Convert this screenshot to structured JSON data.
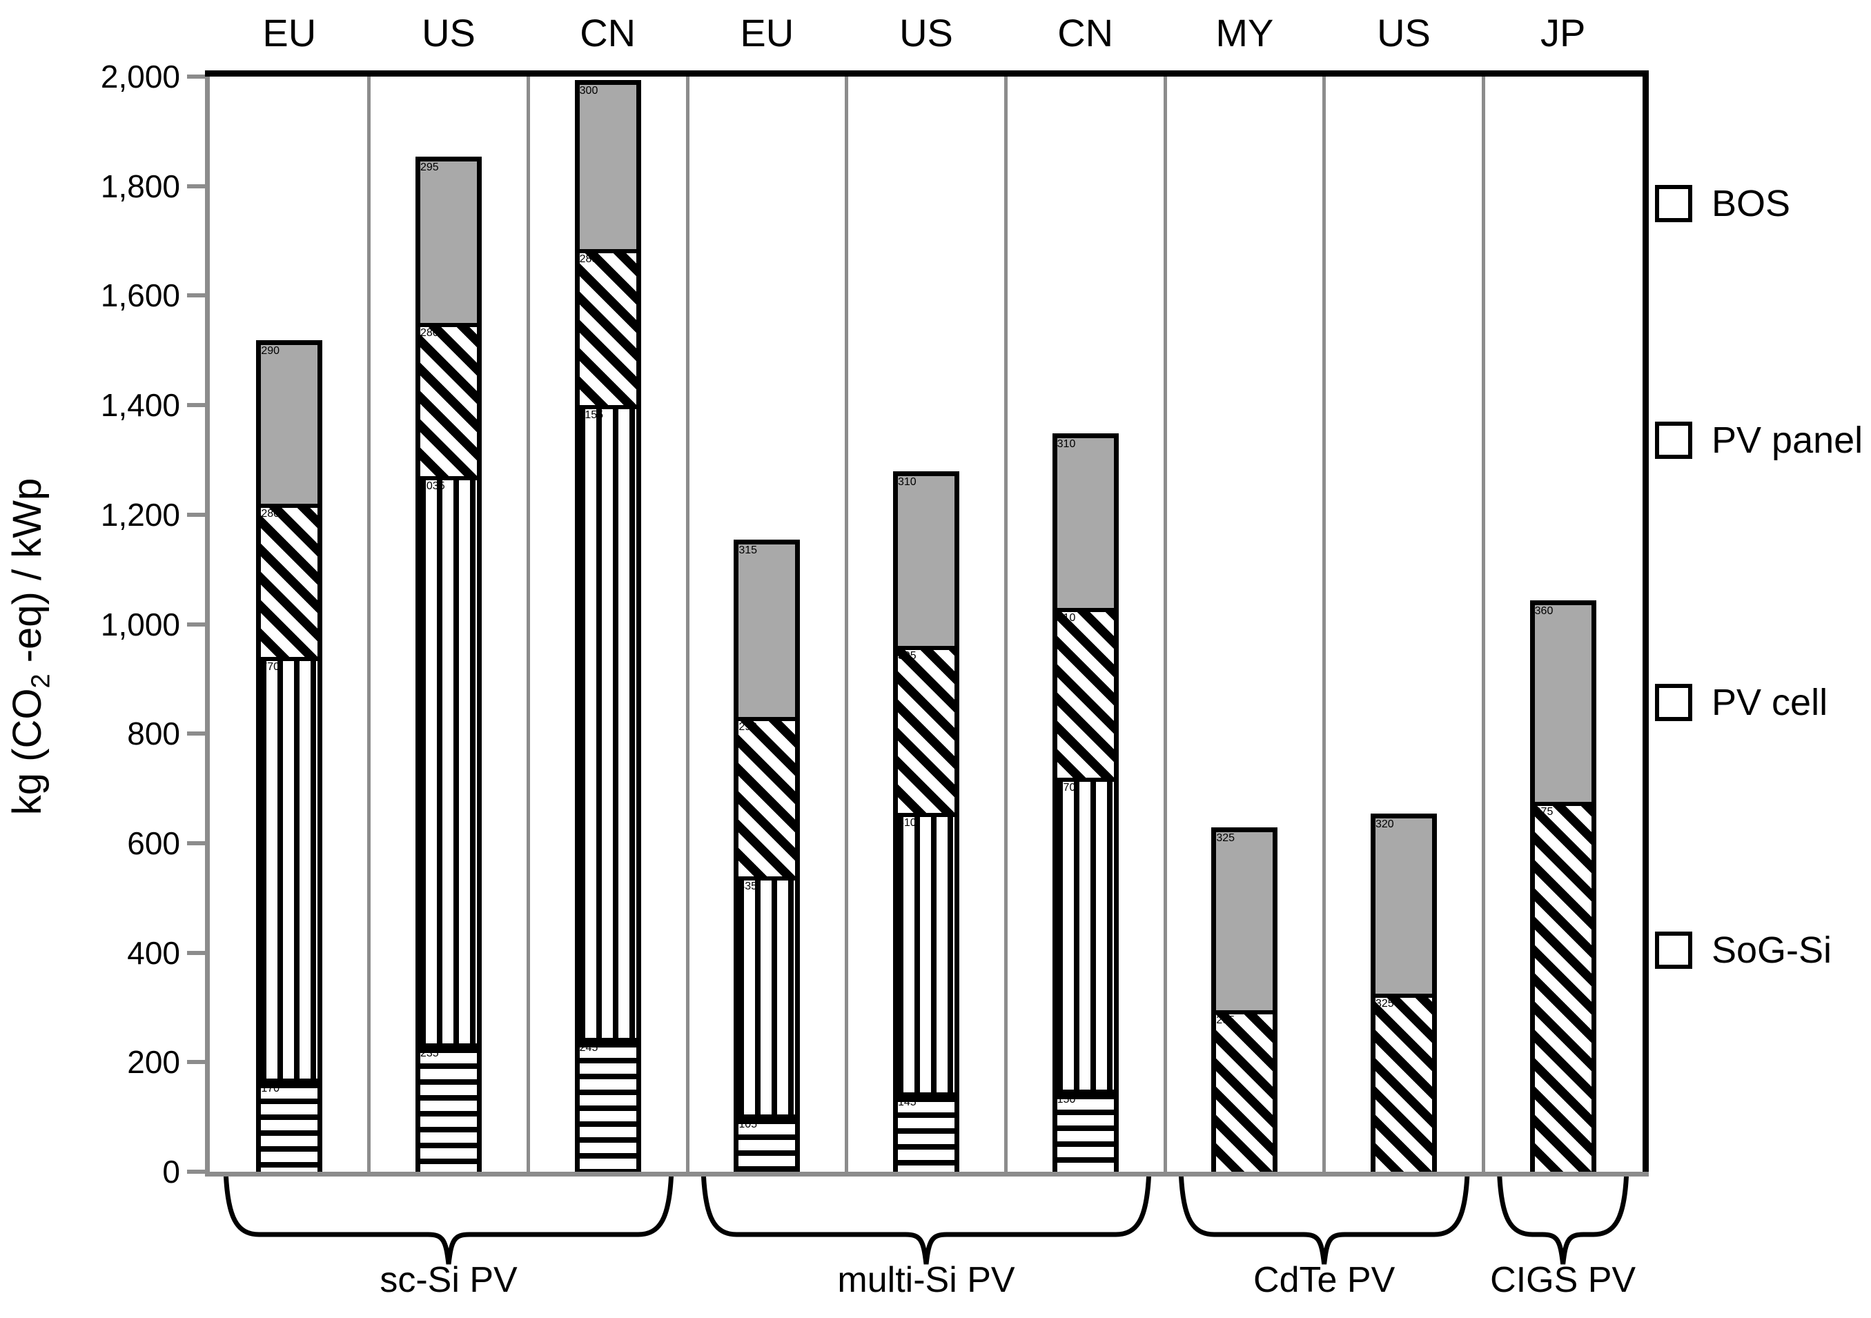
{
  "chart_data": {
    "type": "bar",
    "stacked": true,
    "title": "",
    "ylabel_prefix": "kg (CO",
    "ylabel_sub": "2",
    "ylabel_suffix": " -eq) / kWp",
    "ylim": [
      0,
      2000
    ],
    "ytick_step": 200,
    "ytick_labels": [
      "0",
      "200",
      "400",
      "600",
      "800",
      "1,000",
      "1,200",
      "1,400",
      "1,600",
      "1,800",
      "2,000"
    ],
    "grid": false,
    "legend_position": "right",
    "legend": [
      {
        "label": "BOS",
        "pattern": "solid",
        "color": "#a9a9a9"
      },
      {
        "label": "PV panel",
        "pattern": "diagonal-stripes"
      },
      {
        "label": "PV cell",
        "pattern": "vertical-stripes"
      },
      {
        "label": "SoG-Si",
        "pattern": "horizontal-stripes"
      }
    ],
    "stack_order_bottom_up": [
      "SoG-Si",
      "PV cell",
      "PV panel",
      "BOS"
    ],
    "groups": [
      {
        "label": "sc-Si PV",
        "bars": [
          {
            "region": "EU",
            "segments": {
              "SoG-Si": 170,
              "PV cell": 770,
              "PV panel": 280,
              "BOS": 290
            },
            "total": 1510
          },
          {
            "region": "US",
            "segments": {
              "SoG-Si": 235,
              "PV cell": 1035,
              "PV panel": 280,
              "BOS": 295
            },
            "total": 1845
          },
          {
            "region": "CN",
            "segments": {
              "SoG-Si": 245,
              "PV cell": 1155,
              "PV panel": 285,
              "BOS": 300
            },
            "total": 1985
          }
        ]
      },
      {
        "label": "multi-Si PV",
        "bars": [
          {
            "region": "EU",
            "segments": {
              "SoG-Si": 105,
              "PV cell": 435,
              "PV panel": 290,
              "BOS": 315
            },
            "total": 1145
          },
          {
            "region": "US",
            "segments": {
              "SoG-Si": 145,
              "PV cell": 510,
              "PV panel": 305,
              "BOS": 310
            },
            "total": 1270
          },
          {
            "region": "CN",
            "segments": {
              "SoG-Si": 150,
              "PV cell": 570,
              "PV panel": 310,
              "BOS": 310
            },
            "total": 1340
          }
        ]
      },
      {
        "label": "CdTe PV",
        "bars": [
          {
            "region": "MY",
            "segments": {
              "PV panel": 295,
              "BOS": 325
            },
            "total": 620
          },
          {
            "region": "US",
            "segments": {
              "PV panel": 325,
              "BOS": 320
            },
            "total": 645
          }
        ]
      },
      {
        "label": "CIGS PV",
        "bars": [
          {
            "region": "JP",
            "segments": {
              "PV panel": 675,
              "BOS": 360
            },
            "total": 1035
          }
        ]
      }
    ]
  },
  "colors": {
    "background": "#ffffff",
    "bos_fill": "#a9a9a9",
    "axis_line": "#8c8c8c",
    "separator_line": "#8c8c8c",
    "frame_line": "#000000",
    "text": "#000000"
  }
}
